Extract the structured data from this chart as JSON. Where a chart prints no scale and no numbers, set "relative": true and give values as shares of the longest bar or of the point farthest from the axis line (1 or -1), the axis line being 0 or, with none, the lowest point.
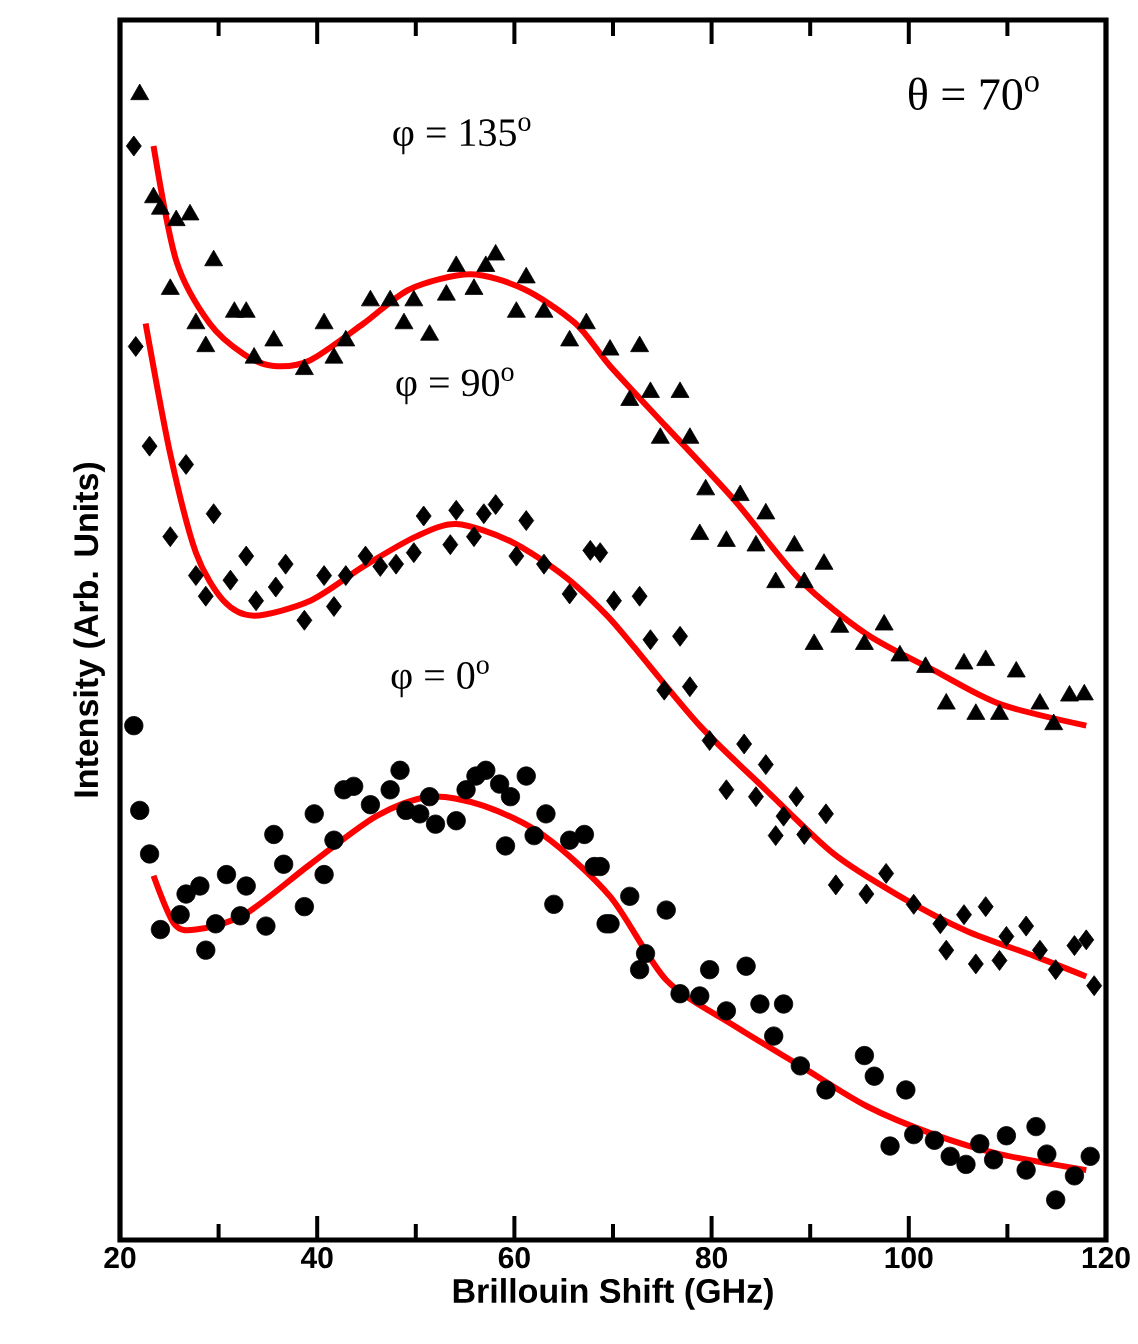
{
  "chart_data": {
    "type": "scatter",
    "relative": true,
    "xlabel": "Brillouin Shift (GHz)",
    "ylabel": "Intensity (Arb. Units)",
    "xlim": [
      20,
      120
    ],
    "xticks": [
      20,
      {
        "value": 30,
        "label": null
      },
      40,
      {
        "value": 50,
        "label": null
      },
      60,
      {
        "value": 70,
        "label": null
      },
      80,
      {
        "value": 90,
        "label": null
      },
      100,
      {
        "value": 110,
        "label": null
      },
      120
    ],
    "tick_labels": "x",
    "annotations": [
      "φ = 135$^{o}$",
      "φ = 90$^{o}$",
      "φ = 0$^{o}$",
      "θ = 70$^{o}$"
    ],
    "series": [
      {
        "marker": "triangle",
        "color": "#000000",
        "x": [
          22.0,
          23.4,
          24.1,
          25.7,
          27.1,
          25.1,
          29.5,
          27.7,
          28.7,
          31.6,
          32.8,
          33.6,
          35.6,
          38.7,
          40.7,
          41.7,
          42.9,
          45.4,
          47.4,
          48.8,
          49.8,
          51.4,
          53.1,
          54.1,
          55.9,
          57.1,
          58.1,
          61.2,
          60.2,
          63.0,
          65.6,
          67.3,
          69.7,
          72.7,
          71.7,
          73.8,
          76.8,
          74.8,
          77.8,
          79.4,
          82.9,
          85.5,
          78.8,
          81.5,
          84.5,
          88.4,
          91.4,
          86.5,
          89.4,
          90.4,
          93.0,
          97.5,
          95.5,
          99.1,
          101.7,
          103.8,
          105.6,
          107.8,
          106.8,
          109.2,
          110.9,
          113.3,
          114.7,
          116.3,
          117.8
        ],
        "values": [
          1.0,
          0.91,
          0.9,
          0.89,
          0.895,
          0.83,
          0.855,
          0.8,
          0.78,
          0.81,
          0.81,
          0.77,
          0.785,
          0.76,
          0.8,
          0.77,
          0.785,
          0.82,
          0.82,
          0.8,
          0.82,
          0.79,
          0.825,
          0.85,
          0.83,
          0.85,
          0.86,
          0.84,
          0.81,
          0.81,
          0.785,
          0.8,
          0.777,
          0.78,
          0.733,
          0.74,
          0.74,
          0.7,
          0.7,
          0.655,
          0.65,
          0.634,
          0.616,
          0.61,
          0.606,
          0.606,
          0.59,
          0.574,
          0.574,
          0.52,
          0.535,
          0.537,
          0.52,
          0.51,
          0.5,
          0.468,
          0.503,
          0.506,
          0.459,
          0.459,
          0.496,
          0.468,
          0.45,
          0.475,
          0.476
        ]
      },
      {
        "type": "line",
        "color": "#ff0000",
        "line_style": "solid",
        "x": [
          23.4,
          25.7,
          29.1,
          32.6,
          35.6,
          39.3,
          44.7,
          49.4,
          55.5,
          61.0,
          66.2,
          69.7,
          75.4,
          82.3,
          89.0,
          95.7,
          102.6,
          109.2,
          118.0
        ],
        "values": [
          0.955,
          0.855,
          0.8,
          0.773,
          0.763,
          0.768,
          0.8,
          0.83,
          0.843,
          0.83,
          0.8,
          0.763,
          0.71,
          0.646,
          0.576,
          0.529,
          0.497,
          0.468,
          0.449
        ]
      },
      {
        "marker": "diamond",
        "color": "#000000",
        "x": [
          21.4,
          21.6,
          23.0,
          26.7,
          29.5,
          25.1,
          27.7,
          28.7,
          31.2,
          32.8,
          33.8,
          35.8,
          36.8,
          38.7,
          40.7,
          41.7,
          42.9,
          44.9,
          46.4,
          48.0,
          49.8,
          50.8,
          53.5,
          54.1,
          55.9,
          56.9,
          58.1,
          61.2,
          60.2,
          63.0,
          65.6,
          67.7,
          68.7,
          70.1,
          72.7,
          73.8,
          76.8,
          75.2,
          77.8,
          79.8,
          83.3,
          81.5,
          84.5,
          85.5,
          88.6,
          87.3,
          86.5,
          89.4,
          91.6,
          92.6,
          95.7,
          97.7,
          100.5,
          103.2,
          105.6,
          107.8,
          103.8,
          106.8,
          109.2,
          111.9,
          109.9,
          113.3,
          114.9,
          116.8,
          118.0,
          118.8
        ],
        "values": [
          0.955,
          0.78,
          0.693,
          0.677,
          0.634,
          0.614,
          0.58,
          0.562,
          0.576,
          0.597,
          0.558,
          0.57,
          0.59,
          0.541,
          0.58,
          0.553,
          0.58,
          0.597,
          0.588,
          0.59,
          0.6,
          0.632,
          0.607,
          0.637,
          0.614,
          0.634,
          0.642,
          0.628,
          0.597,
          0.59,
          0.564,
          0.602,
          0.6,
          0.558,
          0.562,
          0.524,
          0.527,
          0.48,
          0.483,
          0.436,
          0.433,
          0.393,
          0.387,
          0.415,
          0.387,
          0.37,
          0.353,
          0.354,
          0.372,
          0.31,
          0.302,
          0.32,
          0.293,
          0.276,
          0.284,
          0.291,
          0.253,
          0.241,
          0.244,
          0.274,
          0.265,
          0.253,
          0.236,
          0.257,
          0.262,
          0.222
        ]
      },
      {
        "type": "line",
        "color": "#ff0000",
        "line_style": "solid",
        "x": [
          22.6,
          25.1,
          27.7,
          30.5,
          33.6,
          39.3,
          44.7,
          50.0,
          54.1,
          59.6,
          65.0,
          69.3,
          72.1,
          78.8,
          85.5,
          92.4,
          99.1,
          105.8,
          112.7,
          118.0
        ],
        "values": [
          0.8,
          0.686,
          0.6,
          0.558,
          0.545,
          0.558,
          0.588,
          0.614,
          0.625,
          0.61,
          0.58,
          0.546,
          0.518,
          0.449,
          0.393,
          0.337,
          0.3,
          0.27,
          0.248,
          0.23
        ]
      },
      {
        "marker": "circle",
        "color": "#000000",
        "x": [
          21.4,
          22.0,
          23.0,
          24.1,
          26.1,
          26.7,
          28.1,
          28.7,
          29.7,
          30.8,
          32.2,
          32.8,
          34.8,
          35.6,
          36.6,
          38.7,
          39.7,
          40.7,
          41.7,
          42.7,
          43.7,
          45.4,
          47.4,
          48.4,
          49.0,
          50.4,
          51.4,
          52.0,
          54.1,
          55.1,
          56.1,
          57.1,
          58.5,
          59.6,
          61.2,
          59.1,
          62.0,
          63.2,
          64.0,
          65.6,
          67.1,
          68.1,
          69.3,
          68.7,
          71.7,
          69.7,
          73.3,
          75.4,
          72.7,
          76.8,
          78.8,
          79.8,
          81.5,
          83.5,
          84.9,
          87.3,
          86.3,
          89.0,
          91.6,
          95.5,
          96.5,
          99.7,
          98.1,
          100.5,
          102.6,
          104.2,
          105.8,
          107.2,
          108.6,
          109.9,
          111.9,
          112.9,
          114.0,
          114.9,
          116.8,
          118.4
        ],
        "values": [
          0.449,
          0.375,
          0.337,
          0.271,
          0.284,
          0.302,
          0.309,
          0.253,
          0.276,
          0.319,
          0.283,
          0.309,
          0.274,
          0.354,
          0.328,
          0.291,
          0.372,
          0.319,
          0.349,
          0.393,
          0.396,
          0.38,
          0.393,
          0.41,
          0.375,
          0.372,
          0.387,
          0.363,
          0.366,
          0.393,
          0.405,
          0.41,
          0.398,
          0.387,
          0.405,
          0.344,
          0.353,
          0.372,
          0.293,
          0.349,
          0.354,
          0.326,
          0.276,
          0.326,
          0.3,
          0.276,
          0.25,
          0.288,
          0.236,
          0.215,
          0.213,
          0.236,
          0.2,
          0.239,
          0.206,
          0.206,
          0.178,
          0.152,
          0.131,
          0.161,
          0.143,
          0.131,
          0.082,
          0.092,
          0.087,
          0.073,
          0.066,
          0.084,
          0.07,
          0.091,
          0.061,
          0.099,
          0.075,
          0.035,
          0.056,
          0.073
        ]
      },
      {
        "type": "line",
        "color": "#ff0000",
        "line_style": "solid",
        "x": [
          23.4,
          25.5,
          27.7,
          32.6,
          39.3,
          46.0,
          51.4,
          56.9,
          63.0,
          69.7,
          75.4,
          82.3,
          89.0,
          95.7,
          102.6,
          109.2,
          118.0
        ],
        "values": [
          0.318,
          0.276,
          0.271,
          0.284,
          0.328,
          0.37,
          0.387,
          0.379,
          0.353,
          0.3,
          0.227,
          0.187,
          0.152,
          0.117,
          0.092,
          0.075,
          0.061
        ]
      }
    ]
  }
}
